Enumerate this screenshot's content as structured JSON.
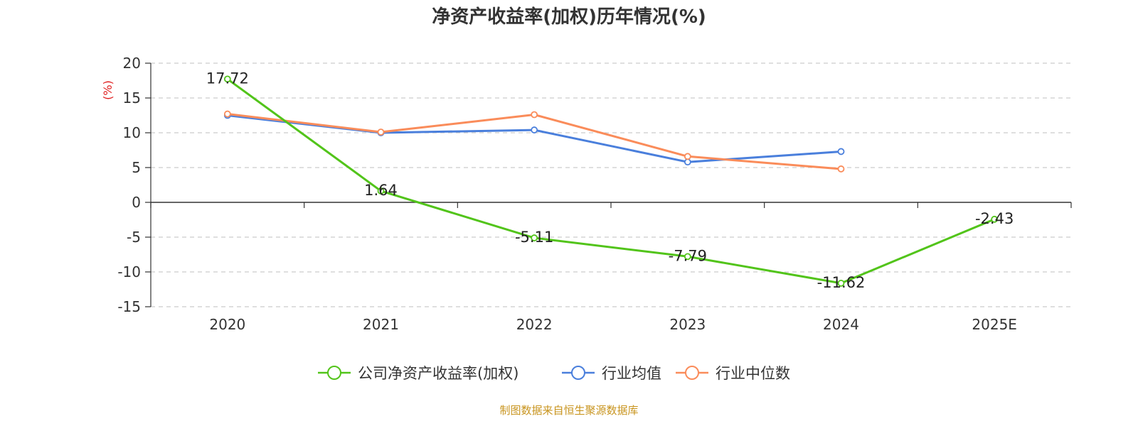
{
  "chart_data": {
    "type": "line",
    "title": "净资产收益率(加权)历年情况(%)",
    "ylabel": "(%)",
    "ylim": [
      -15,
      20
    ],
    "yticks": [
      20,
      15,
      10,
      5,
      0,
      -5,
      -10,
      -15
    ],
    "categories": [
      "2020",
      "2021",
      "2022",
      "2023",
      "2024",
      "2025E"
    ],
    "grid": true,
    "legend_position": "bottom",
    "series": [
      {
        "name": "公司净资产收益率(加权)",
        "color": "#52c41a",
        "values": [
          17.72,
          1.64,
          -5.11,
          -7.79,
          -11.62,
          -2.43
        ],
        "labels": [
          "17.72",
          "1.64",
          "-5.11",
          "-7.79",
          "-11.62",
          "-2.43"
        ]
      },
      {
        "name": "行业均值",
        "color": "#4a7fdc",
        "values": [
          12.5,
          10.0,
          10.4,
          5.8,
          7.3,
          null
        ]
      },
      {
        "name": "行业中位数",
        "color": "#fa8c5a",
        "values": [
          12.7,
          10.1,
          12.6,
          6.6,
          4.8,
          null
        ]
      }
    ]
  },
  "source": "制图数据来自恒生聚源数据库"
}
